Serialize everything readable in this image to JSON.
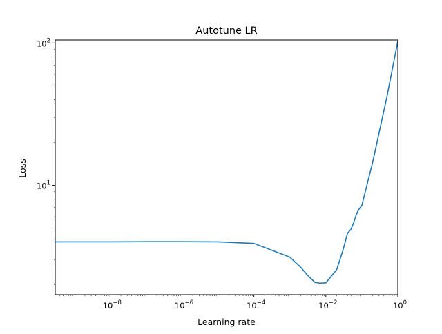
{
  "chart_data": {
    "type": "line",
    "title": "Autotune LR",
    "xlabel": "Learning rate",
    "ylabel": "Loss",
    "xscale": "log",
    "yscale": "log",
    "xlim": [
      3e-10,
      1
    ],
    "ylim": [
      1.7,
      105
    ],
    "grid": false,
    "legend": "none",
    "line_color": "#1f77b4",
    "x_ticks": [
      {
        "value": 1e-08,
        "base": "10",
        "exp": "−8"
      },
      {
        "value": 1e-06,
        "base": "10",
        "exp": "−6"
      },
      {
        "value": 0.0001,
        "base": "10",
        "exp": "−4"
      },
      {
        "value": 0.01,
        "base": "10",
        "exp": "−2"
      },
      {
        "value": 1,
        "base": "10",
        "exp": "0"
      }
    ],
    "y_ticks": [
      {
        "value": 10,
        "base": "10",
        "exp": "1"
      },
      {
        "value": 100,
        "base": "10",
        "exp": "2"
      }
    ],
    "series": [
      {
        "name": "loss",
        "x": [
          3e-10,
          1e-08,
          1e-07,
          1e-06,
          1e-05,
          0.0001,
          0.001,
          0.002,
          0.003,
          0.005,
          0.007,
          0.01,
          0.02,
          0.03,
          0.04,
          0.05,
          0.06,
          0.07,
          0.08,
          0.1,
          0.2,
          0.5,
          1
        ],
        "y": [
          4.0,
          4.0,
          4.01,
          4.01,
          4.0,
          3.9,
          3.12,
          2.65,
          2.35,
          2.07,
          2.05,
          2.06,
          2.55,
          3.5,
          4.6,
          4.9,
          5.5,
          6.2,
          6.7,
          7.2,
          14.5,
          42,
          103
        ]
      }
    ]
  }
}
